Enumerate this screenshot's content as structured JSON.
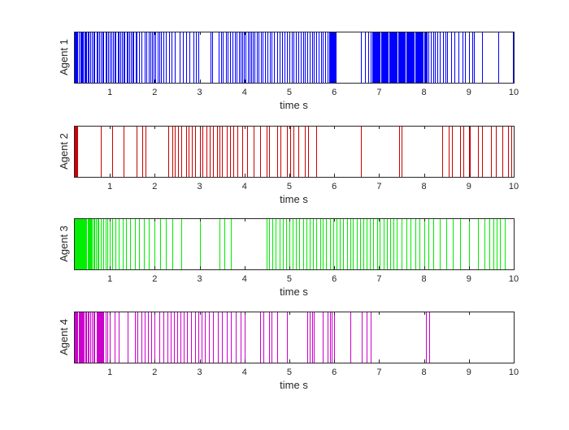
{
  "chart_data": [
    {
      "type": "event",
      "ylabel": "Agent 1",
      "xlabel": "time s",
      "color": "#0000ff",
      "xlim": [
        0.2,
        10
      ],
      "xticks": [
        1,
        2,
        3,
        4,
        5,
        6,
        7,
        8,
        9,
        10
      ],
      "events": [
        0.22,
        0.24,
        0.26,
        0.28,
        0.3,
        0.34,
        0.36,
        0.38,
        0.4,
        0.43,
        0.45,
        0.48,
        0.5,
        0.53,
        0.56,
        0.6,
        0.63,
        0.66,
        0.7,
        0.73,
        0.77,
        0.8,
        0.83,
        0.86,
        0.9,
        0.93,
        0.96,
        1.0,
        1.03,
        1.07,
        1.1,
        1.13,
        1.17,
        1.2,
        1.23,
        1.27,
        1.3,
        1.33,
        1.37,
        1.4,
        1.43,
        1.47,
        1.5,
        1.53,
        1.57,
        1.6,
        1.65,
        1.7,
        1.78,
        1.82,
        1.86,
        1.9,
        1.94,
        1.98,
        2.02,
        2.06,
        2.1,
        2.14,
        2.2,
        2.25,
        2.32,
        2.38,
        2.45,
        2.55,
        2.62,
        2.7,
        2.78,
        2.86,
        2.92,
        2.97,
        3.25,
        3.28,
        3.42,
        3.47,
        3.52,
        3.58,
        3.63,
        3.68,
        3.73,
        3.78,
        3.83,
        3.87,
        3.91,
        3.95,
        3.99,
        4.03,
        4.07,
        4.11,
        4.15,
        4.19,
        4.23,
        4.27,
        4.31,
        4.36,
        4.41,
        4.46,
        4.51,
        4.56,
        4.61,
        4.66,
        4.72,
        4.78,
        4.84,
        4.9,
        4.95,
        5.0,
        5.05,
        5.1,
        5.15,
        5.2,
        5.25,
        5.3,
        5.35,
        5.4,
        5.45,
        5.5,
        5.55,
        5.6,
        5.65,
        5.7,
        5.75,
        5.8,
        5.85,
        5.88,
        5.9,
        5.92,
        5.94,
        5.96,
        5.98,
        6.0,
        6.02,
        6.04,
        6.6,
        6.68,
        6.75,
        6.82,
        6.84,
        6.86,
        6.88,
        6.9,
        6.92,
        6.94,
        6.96,
        6.98,
        7.0,
        7.02,
        7.04,
        7.06,
        7.08,
        7.1,
        7.12,
        7.14,
        7.16,
        7.18,
        7.2,
        7.22,
        7.24,
        7.26,
        7.28,
        7.3,
        7.32,
        7.34,
        7.36,
        7.38,
        7.4,
        7.42,
        7.44,
        7.46,
        7.48,
        7.5,
        7.52,
        7.54,
        7.56,
        7.58,
        7.6,
        7.62,
        7.64,
        7.66,
        7.68,
        7.7,
        7.72,
        7.74,
        7.76,
        7.78,
        7.8,
        7.82,
        7.84,
        7.86,
        7.88,
        7.9,
        7.92,
        7.94,
        7.96,
        7.98,
        8.0,
        8.02,
        8.04,
        8.06,
        8.1,
        8.15,
        8.2,
        8.25,
        8.3,
        8.36,
        8.42,
        8.47,
        8.52,
        8.6,
        8.68,
        8.77,
        8.85,
        8.92,
        9.0,
        9.07,
        9.12,
        9.3,
        9.65,
        9.98
      ]
    },
    {
      "type": "event",
      "ylabel": "Agent 2",
      "xlabel": "time s",
      "color": "#cc0000",
      "xlim": [
        0.2,
        10
      ],
      "xticks": [
        1,
        2,
        3,
        4,
        5,
        6,
        7,
        8,
        9,
        10
      ],
      "events": [
        0.21,
        0.22,
        0.23,
        0.24,
        0.25,
        0.26,
        0.27,
        0.8,
        1.05,
        1.3,
        1.6,
        1.72,
        1.8,
        2.3,
        2.4,
        2.45,
        2.52,
        2.6,
        2.7,
        2.75,
        2.82,
        2.9,
        3.0,
        3.07,
        3.15,
        3.22,
        3.3,
        3.38,
        3.45,
        3.5,
        3.6,
        3.67,
        3.75,
        3.85,
        3.95,
        4.05,
        4.2,
        4.35,
        4.5,
        4.55,
        4.72,
        4.8,
        4.95,
        5.02,
        5.1,
        5.2,
        5.35,
        5.42,
        5.6,
        6.6,
        7.45,
        7.5,
        8.4,
        8.55,
        8.62,
        8.8,
        8.88,
        9.0,
        9.02,
        9.2,
        9.3,
        9.5,
        9.6,
        9.75,
        9.88,
        9.95
      ]
    },
    {
      "type": "event",
      "ylabel": "Agent 3",
      "xlabel": "time s",
      "color": "#00ee00",
      "xlim": [
        0.2,
        10
      ],
      "xticks": [
        1,
        2,
        3,
        4,
        5,
        6,
        7,
        8,
        9,
        10
      ],
      "events": [
        0.21,
        0.22,
        0.23,
        0.24,
        0.25,
        0.26,
        0.27,
        0.28,
        0.29,
        0.3,
        0.31,
        0.32,
        0.33,
        0.34,
        0.35,
        0.36,
        0.37,
        0.38,
        0.39,
        0.4,
        0.42,
        0.44,
        0.46,
        0.48,
        0.5,
        0.52,
        0.54,
        0.56,
        0.58,
        0.6,
        0.63,
        0.66,
        0.69,
        0.72,
        0.75,
        0.8,
        0.85,
        0.9,
        0.95,
        1.0,
        1.06,
        1.12,
        1.2,
        1.28,
        1.36,
        1.45,
        1.55,
        1.65,
        1.75,
        1.87,
        2.0,
        2.12,
        2.25,
        2.4,
        2.6,
        3.0,
        3.45,
        3.55,
        3.7,
        4.5,
        4.55,
        4.62,
        4.7,
        4.78,
        4.85,
        4.92,
        5.0,
        5.07,
        5.15,
        5.22,
        5.3,
        5.38,
        5.45,
        5.52,
        5.6,
        5.68,
        5.75,
        5.82,
        5.9,
        5.97,
        6.05,
        6.12,
        6.2,
        6.28,
        6.35,
        6.42,
        6.5,
        6.57,
        6.65,
        6.72,
        6.8,
        6.87,
        6.95,
        7.02,
        7.1,
        7.17,
        7.25,
        7.32,
        7.4,
        7.5,
        7.6,
        7.7,
        7.8,
        7.9,
        8.0,
        8.1,
        8.2,
        8.35,
        8.5,
        8.65,
        8.8,
        9.0,
        9.2,
        9.35,
        9.45,
        9.55,
        9.62,
        9.7,
        9.8
      ]
    },
    {
      "type": "event",
      "ylabel": "Agent 4",
      "xlabel": "time s",
      "color": "#cc00cc",
      "xlim": [
        0.2,
        10
      ],
      "xticks": [
        1,
        2,
        3,
        4,
        5,
        6,
        7,
        8,
        9,
        10
      ],
      "events": [
        0.21,
        0.22,
        0.23,
        0.24,
        0.25,
        0.26,
        0.27,
        0.28,
        0.3,
        0.32,
        0.34,
        0.36,
        0.38,
        0.4,
        0.42,
        0.45,
        0.48,
        0.5,
        0.53,
        0.56,
        0.6,
        0.63,
        0.66,
        0.7,
        0.72,
        0.74,
        0.76,
        0.78,
        0.8,
        0.82,
        0.84,
        0.86,
        0.9,
        0.95,
        1.0,
        1.1,
        1.2,
        1.4,
        1.55,
        1.62,
        1.7,
        1.78,
        1.85,
        1.92,
        2.0,
        2.1,
        2.2,
        2.28,
        2.35,
        2.42,
        2.5,
        2.57,
        2.65,
        2.72,
        2.8,
        2.9,
        2.97,
        3.05,
        3.12,
        3.2,
        3.3,
        3.4,
        3.5,
        3.6,
        3.7,
        3.8,
        3.92,
        4.0,
        4.35,
        4.42,
        4.55,
        4.6,
        4.72,
        4.95,
        5.4,
        5.45,
        5.5,
        5.55,
        5.75,
        5.85,
        5.9,
        5.95,
        6.0,
        6.35,
        6.62,
        6.72,
        6.82,
        8.05,
        8.12
      ]
    }
  ]
}
